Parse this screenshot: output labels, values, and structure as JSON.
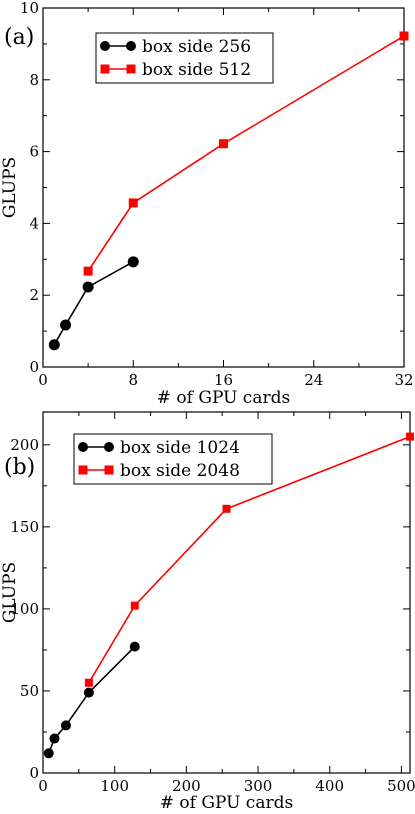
{
  "chart_data": [
    {
      "type": "line",
      "panel_label": "(a)",
      "xlabel": "# of GPU cards",
      "ylabel": "GLUPS",
      "xlim": [
        0,
        32
      ],
      "ylim": [
        0,
        10
      ],
      "xticks": [
        0,
        8,
        16,
        24,
        32
      ],
      "yticks": [
        0,
        2,
        4,
        6,
        8,
        10
      ],
      "legend_position": "top-left",
      "series": [
        {
          "name": "box side 256",
          "color": "#000000",
          "marker": "circle",
          "x": [
            1,
            2,
            4,
            8
          ],
          "y": [
            0.62,
            1.17,
            2.23,
            2.93
          ]
        },
        {
          "name": "box side 512",
          "color": "#ff0000",
          "marker": "square",
          "x": [
            4,
            8,
            16,
            32
          ],
          "y": [
            2.67,
            4.57,
            6.22,
            9.22
          ]
        }
      ]
    },
    {
      "type": "line",
      "panel_label": "(b)",
      "xlabel": "# of GPU cards",
      "ylabel": "GLUPS",
      "xlim": [
        0,
        512
      ],
      "ylim": [
        0,
        220
      ],
      "xticks": [
        0,
        100,
        200,
        300,
        400,
        500
      ],
      "yticks": [
        0,
        50,
        100,
        150,
        200
      ],
      "legend_position": "top-left",
      "series": [
        {
          "name": "box side 1024",
          "color": "#000000",
          "marker": "circle",
          "x": [
            8,
            16,
            32,
            64,
            128
          ],
          "y": [
            12,
            21,
            29,
            49,
            77
          ]
        },
        {
          "name": "box side 2048",
          "color": "#ff0000",
          "marker": "square",
          "x": [
            64,
            128,
            256,
            512
          ],
          "y": [
            55,
            102,
            161,
            205
          ]
        }
      ]
    }
  ]
}
